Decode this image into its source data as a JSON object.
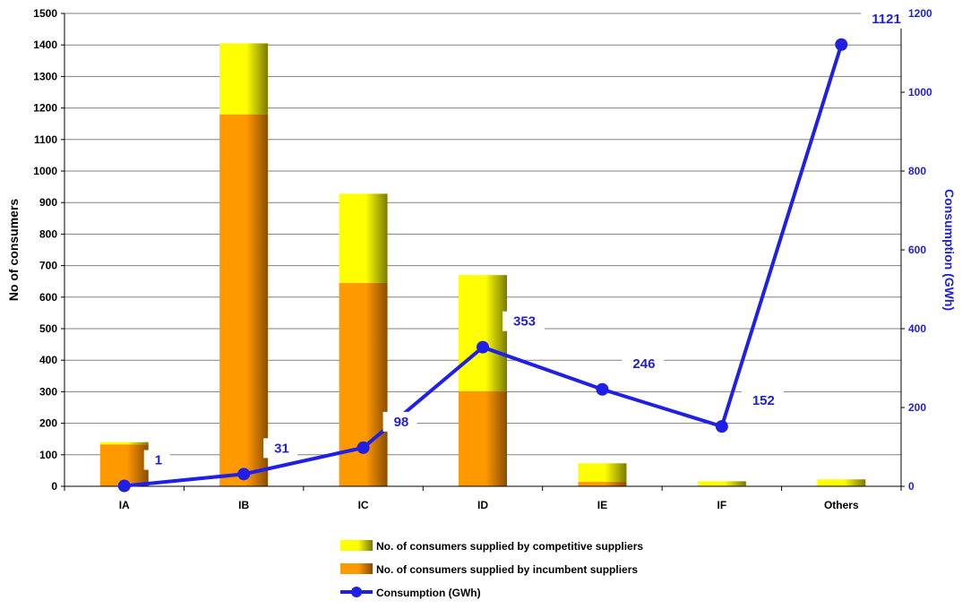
{
  "chart_data": {
    "type": "bar",
    "stacked": true,
    "categories": [
      "IA",
      "IB",
      "IC",
      "ID",
      "IE",
      "IF",
      "Others"
    ],
    "series": [
      {
        "name": "No. of consumers supplied by incumbent suppliers",
        "axis": "left",
        "kind": "bar",
        "values": [
          133,
          1180,
          645,
          302,
          14,
          2,
          0
        ]
      },
      {
        "name": "No. of consumers supplied by competitive suppliers",
        "axis": "left",
        "kind": "bar",
        "values": [
          7,
          225,
          283,
          368,
          59,
          14,
          22
        ]
      },
      {
        "name": "Consumption (GWh)",
        "axis": "right",
        "kind": "line",
        "values": [
          1,
          31,
          98,
          353,
          246,
          152,
          1121
        ],
        "data_labels": [
          "1",
          "31",
          "98",
          "353",
          "246",
          "152",
          "1121"
        ]
      }
    ],
    "ylabel": "No of consumers",
    "ylim": [
      0,
      1500
    ],
    "yticks": [
      0,
      100,
      200,
      300,
      400,
      500,
      600,
      700,
      800,
      900,
      1000,
      1100,
      1200,
      1300,
      1400,
      1500
    ],
    "y2label": "Consumption (GWh)",
    "y2lim": [
      0,
      1200
    ],
    "y2ticks": [
      0,
      200,
      400,
      600,
      800,
      1000,
      1200
    ],
    "grid": true,
    "legend_position": "bottom",
    "legend_order": [
      "No. of consumers supplied by competitive suppliers",
      "No. of consumers supplied by incumbent suppliers",
      "Consumption (GWh)"
    ],
    "colors": {
      "incumbent_light": "#ff9900",
      "incumbent_dark": "#8a4d00",
      "competitive_light": "#ffff00",
      "competitive_dark": "#7a7a00",
      "line": "#1f1fe6",
      "grid": "#808080"
    }
  }
}
